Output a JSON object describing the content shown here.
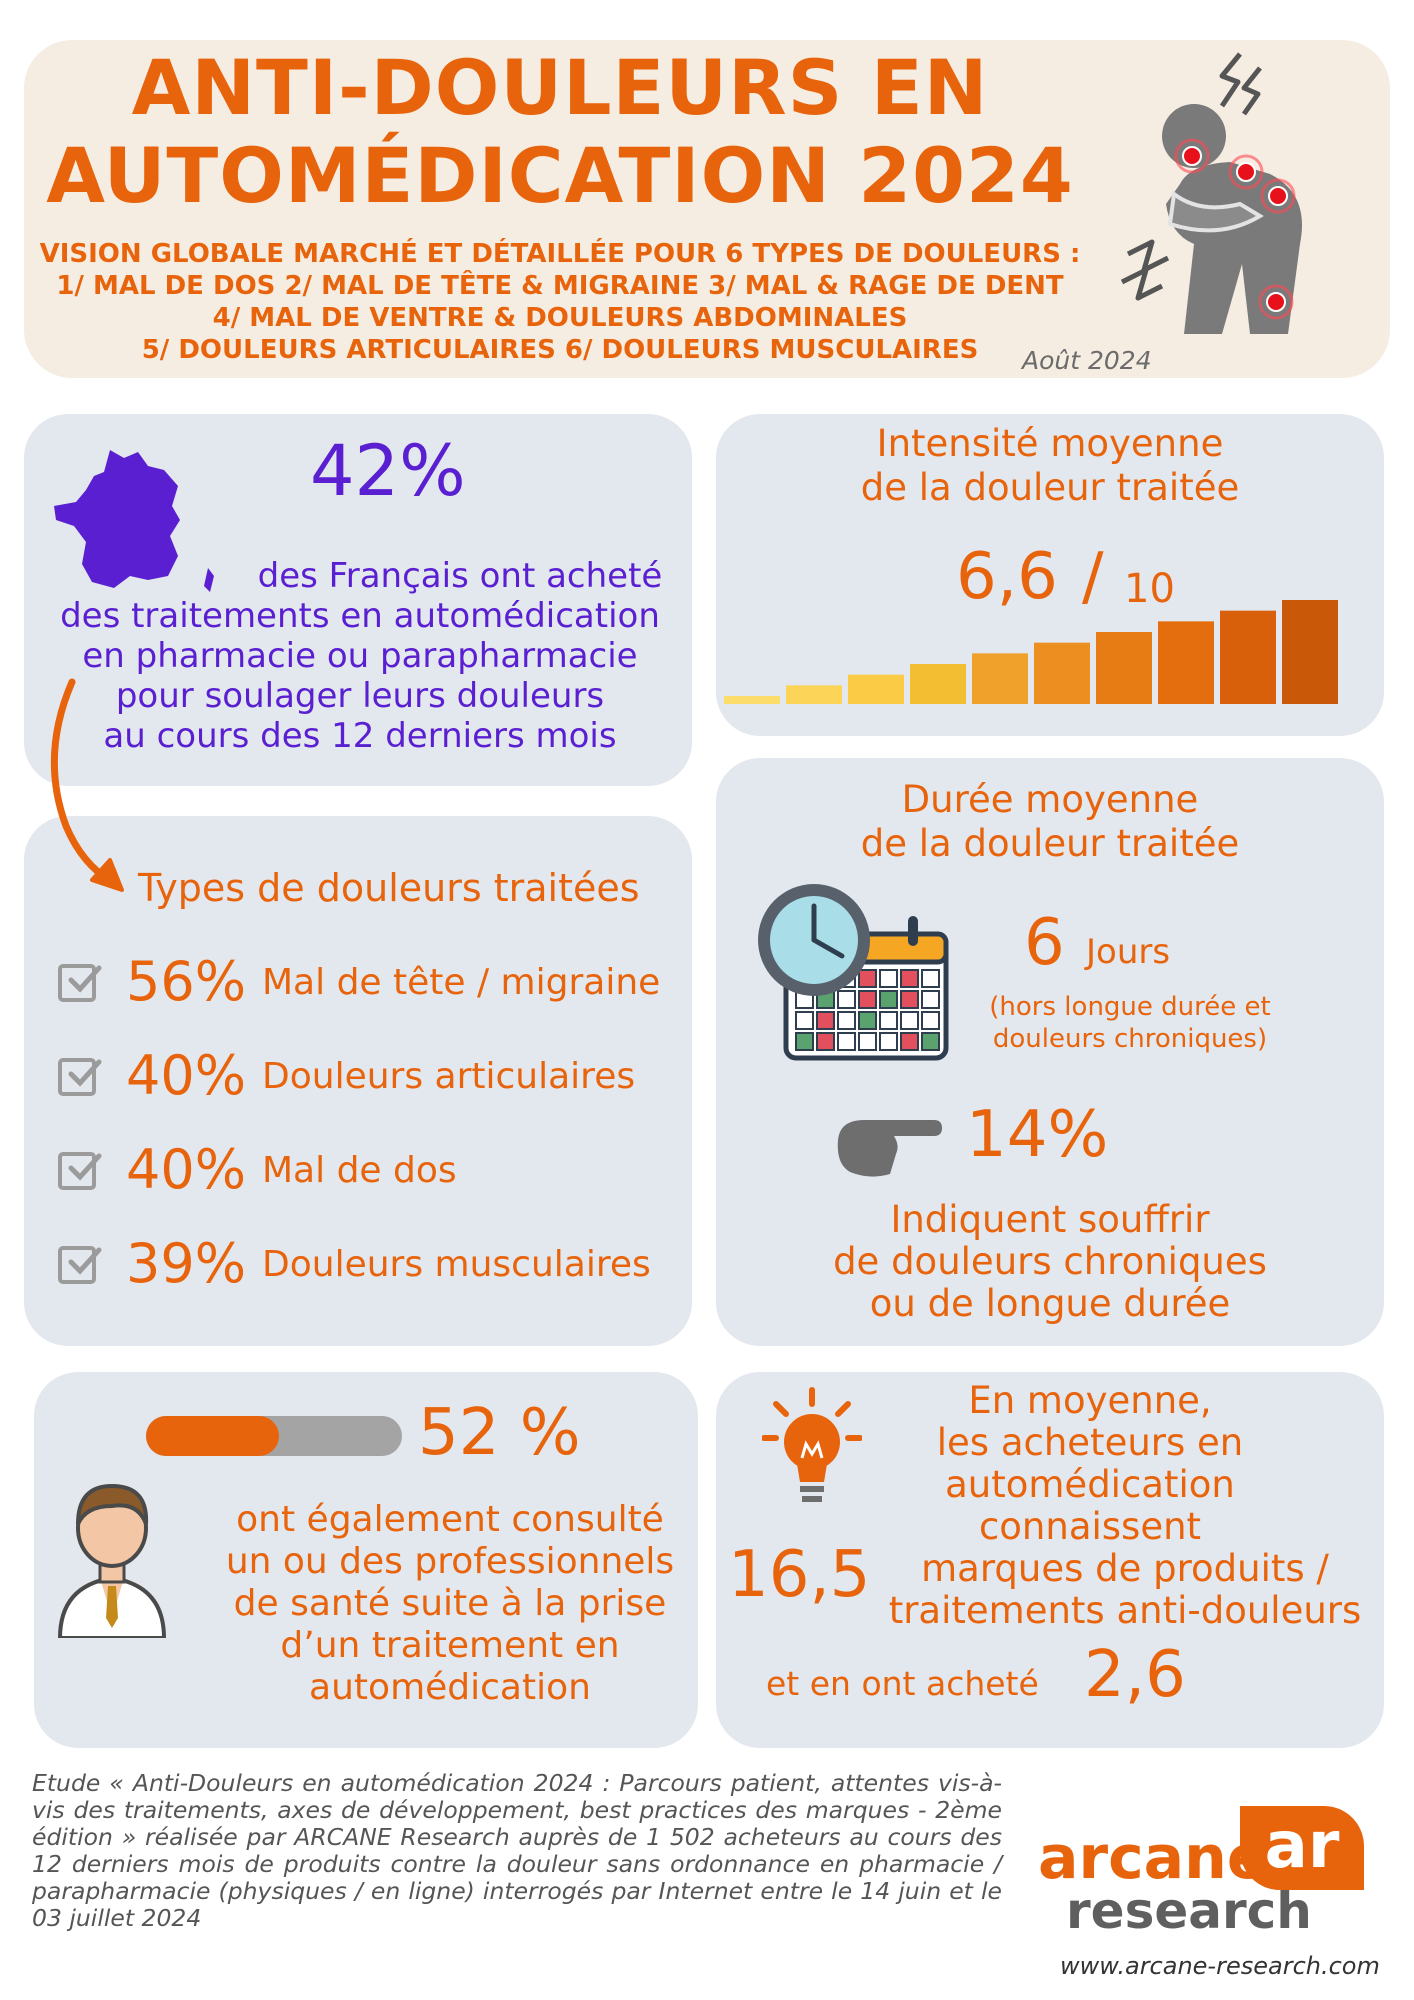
{
  "header": {
    "title_line1": "ANTI-DOULEURS EN",
    "title_line2": "AUTOMÉDICATION 2024",
    "subtitle_lines": [
      "VISION GLOBALE MARCHÉ ET DÉTAILLÉE POUR 6 TYPES DE DOULEURS :",
      "1/ MAL DE DOS 2/ MAL DE TÊTE & MIGRAINE 3/ MAL & RAGE DE DENT",
      "4/ MAL DE VENTRE & DOULEURS ABDOMINALES",
      "5/ DOULEURS ARTICULAIRES 6/ DOULEURS MUSCULAIRES"
    ],
    "date": "Août 2024"
  },
  "purchase": {
    "value": "42%",
    "text_lines": [
      "des Français ont acheté",
      "des traitements en automédication",
      "en pharmacie ou parapharmacie",
      "pour soulager leurs douleurs",
      "au cours des 12 derniers mois"
    ]
  },
  "intensity": {
    "title_line1": "Intensité moyenne",
    "title_line2": "de la douleur traitée",
    "value": "6,6",
    "slash": "/",
    "scale": "10",
    "bar_colors": [
      "#fcdc6a",
      "#fcd458",
      "#fbcb45",
      "#f4be33",
      "#f0a12c",
      "#ec8f20",
      "#e87c14",
      "#e46d0e",
      "#d8600a",
      "#c95908"
    ]
  },
  "types": {
    "title": "Types de douleurs traitées",
    "items": [
      {
        "pct": "56%",
        "label": "Mal de tête / migraine"
      },
      {
        "pct": "40%",
        "label": "Douleurs articulaires"
      },
      {
        "pct": "40%",
        "label": "Mal de dos"
      },
      {
        "pct": "39%",
        "label": "Douleurs musculaires"
      }
    ]
  },
  "duration": {
    "title_line1": "Durée moyenne",
    "title_line2": "de la douleur traitée",
    "value": "6",
    "unit": "Jours",
    "note_line1": "(hors longue durée et",
    "note_line2": "douleurs chroniques)",
    "chronic_value": "14%",
    "chronic_lines": [
      "Indiquent souffrir",
      "de douleurs chroniques",
      "ou de longue durée"
    ]
  },
  "consult": {
    "value": "52 %",
    "progress_fraction": 0.52,
    "text_lines": [
      "ont également consulté",
      "un ou des professionnels",
      "de santé suite à la prise",
      "d’un traitement en",
      "automédication"
    ]
  },
  "brands": {
    "text_lines": [
      "En moyenne,",
      "les acheteurs en",
      "automédication",
      "connaissent"
    ],
    "known_value": "16,5",
    "known_lines": [
      "marques de produits /",
      "traitements anti-douleurs"
    ],
    "bought_text": "et en ont acheté",
    "bought_value": "2,6"
  },
  "footer": {
    "study_text": "Etude « Anti-Douleurs en automédication 2024 : Parcours patient, attentes vis-à-vis des traitements, axes de développement, best practices des marques - 2ème édition » réalisée par ARCANE Research auprès de 1 502 acheteurs au cours des 12 derniers mois de produits contre la douleur sans ordonnance en pharmacie / parapharmacie (physiques / en ligne) interrogés par Internet entre le 14 juin et le 03 juillet 2024",
    "logo_word1": "arcane",
    "logo_word2": "research",
    "logo_mark": "ar",
    "website": "www.arcane-research.com"
  },
  "colors": {
    "orange": "#e8640c",
    "purple": "#5a1fd1",
    "card": "#e3e7ee",
    "header_bg": "#f6ede2"
  }
}
